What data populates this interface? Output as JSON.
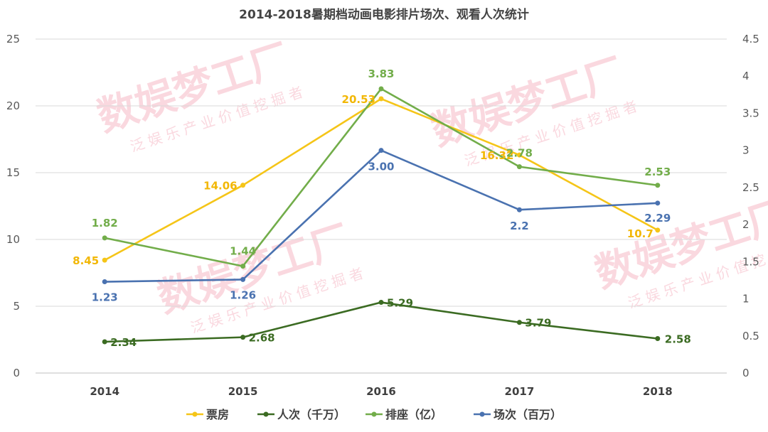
{
  "chart_data": {
    "type": "line",
    "title": "2014-2018暑期档动画电影排片场次、观看人次统计",
    "categories": [
      "2014",
      "2015",
      "2016",
      "2017",
      "2018"
    ],
    "left_axis": {
      "min": 0,
      "max": 25,
      "ticks": [
        "0",
        "5",
        "10",
        "15",
        "20",
        "25"
      ]
    },
    "right_axis": {
      "min": 0,
      "max": 4.5,
      "ticks": [
        "0",
        "0.5",
        "1",
        "1.5",
        "2",
        "2.5",
        "3",
        "3.5",
        "4",
        "4.5"
      ]
    },
    "gridlines": true,
    "legend_position": "bottom",
    "series": [
      {
        "name": "票房",
        "axis": "left",
        "color": "#f5c518",
        "values": [
          8.45,
          14.06,
          20.53,
          16.32,
          10.7
        ],
        "labels": [
          "8.45",
          "14.06",
          "20.53",
          "16.32",
          "10.7"
        ]
      },
      {
        "name": "人次（千万）",
        "axis": "left",
        "color": "#3b6b22",
        "values": [
          2.34,
          2.68,
          5.29,
          3.79,
          2.58
        ],
        "labels": [
          "2.34",
          "2.68",
          "5.29",
          "3.79",
          "2.58"
        ]
      },
      {
        "name": "排座（亿）",
        "axis": "right",
        "color": "#72ad4a",
        "values": [
          1.82,
          1.44,
          3.83,
          2.78,
          2.53
        ],
        "labels": [
          "1.82",
          "1.44",
          "3.83",
          "2.78",
          "2.53"
        ]
      },
      {
        "name": "场次（百万）",
        "axis": "right",
        "color": "#4a72b0",
        "values": [
          1.23,
          1.26,
          3.0,
          2.2,
          2.29
        ],
        "labels": [
          "1.23",
          "1.26",
          "3.00",
          "2.2",
          "2.29"
        ]
      }
    ]
  },
  "watermark": {
    "text": "数娱梦工厂",
    "subtitle": "泛娱乐产业价值挖掘者"
  }
}
